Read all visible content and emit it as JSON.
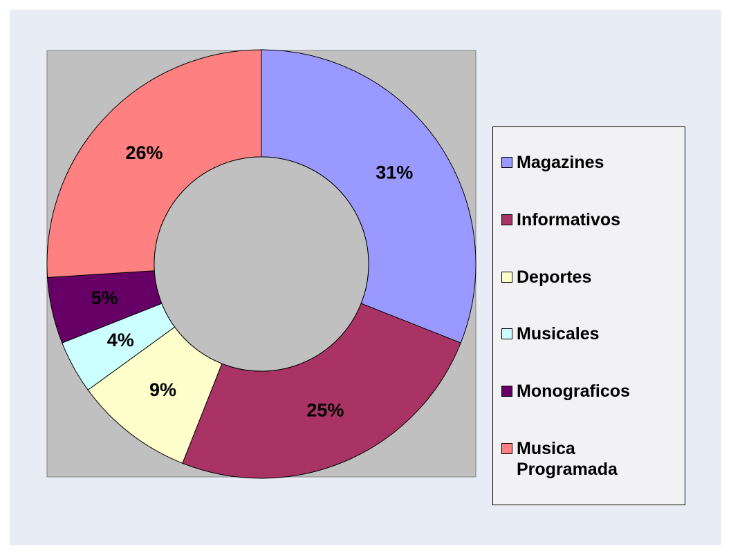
{
  "chart_data": {
    "type": "donut",
    "categories": [
      "Magazines",
      "Informativos",
      "Deportes",
      "Musicales",
      "Monograficos",
      "Musica Programada"
    ],
    "values": [
      31,
      25,
      9,
      4,
      5,
      26
    ],
    "value_labels": [
      "31%",
      "25%",
      "9%",
      "4%",
      "5%",
      "26%"
    ],
    "colors": [
      "#9999ff",
      "#aa3366",
      "#ffffcc",
      "#ccffff",
      "#660066",
      "#ff8080"
    ],
    "legend": "right"
  }
}
